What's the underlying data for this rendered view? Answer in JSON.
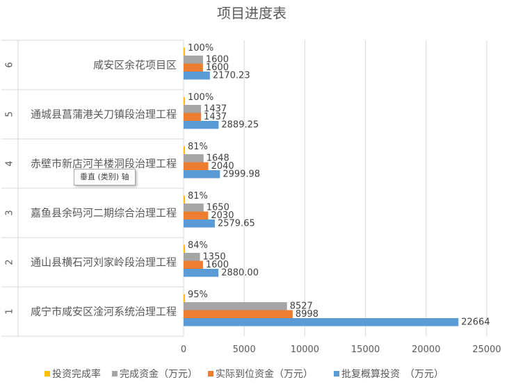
{
  "chart_data": {
    "type": "bar",
    "orientation": "horizontal",
    "title": "项目进度表",
    "group_labels": [
      "1",
      "2",
      "3",
      "4",
      "5",
      "6"
    ],
    "categories": [
      "咸宁市咸安区淦河系统治理工程",
      "通山县横石河刘家岭段治理工程",
      "嘉鱼县余码河二期综合治理工程",
      "赤壁市新店河羊楼洞段治理工程",
      "通城县菖蒲港关刀镇段治理工程",
      "咸安区余花项目区"
    ],
    "series": [
      {
        "name": "投资完成率",
        "color": "#ffc000",
        "values": [
          0.95,
          0.84,
          0.81,
          0.81,
          1.0,
          1.0
        ],
        "labels": [
          "95%",
          "84%",
          "81%",
          "81%",
          "100%",
          "100%"
        ]
      },
      {
        "name": "完成资金（万元）",
        "color": "#a5a5a5",
        "values": [
          8527,
          1350,
          1650,
          1648,
          1437,
          1600
        ],
        "labels": [
          "8527",
          "1350",
          "1650",
          "1648",
          "1437",
          "1600"
        ]
      },
      {
        "name": "实际到位资金（万元）",
        "color": "#ed7d31",
        "values": [
          8998,
          1600,
          2030,
          2040,
          1437,
          1600
        ],
        "labels": [
          "8998",
          "1600",
          "2030",
          "2040",
          "1437",
          "1600"
        ]
      },
      {
        "name": "批复概算投资　（万元）",
        "color": "#5b9bd5",
        "values": [
          22664,
          2880.0,
          2579.65,
          2999.98,
          2889.25,
          2170.23
        ],
        "labels": [
          "22664",
          "2880.00",
          "2579.65",
          "2999.98",
          "2889.25",
          "2170.23"
        ]
      }
    ],
    "xlim": [
      0,
      25000
    ],
    "x_ticks": [
      0,
      5000,
      10000,
      15000,
      20000,
      25000
    ],
    "grid": true,
    "legend_position": "bottom"
  },
  "tooltip": {
    "text": "垂直 (类别) 轴"
  }
}
